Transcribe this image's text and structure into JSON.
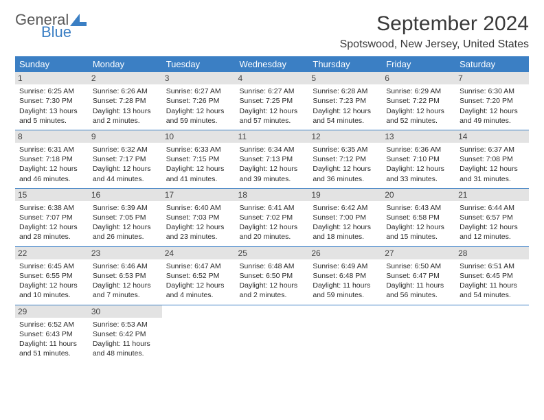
{
  "brand": {
    "line1": "General",
    "line2": "Blue",
    "logo_color": "#3b7fc4",
    "text_color": "#5a5a5a"
  },
  "title": "September 2024",
  "location": "Spotswood, New Jersey, United States",
  "colors": {
    "header_bg": "#3b7fc4",
    "header_fg": "#ffffff",
    "daynum_bg": "#e3e3e3",
    "border": "#3b7fc4"
  },
  "weekdays": [
    "Sunday",
    "Monday",
    "Tuesday",
    "Wednesday",
    "Thursday",
    "Friday",
    "Saturday"
  ],
  "weeks": [
    [
      {
        "n": "1",
        "sr": "6:25 AM",
        "ss": "7:30 PM",
        "dh": "13",
        "dm": "5"
      },
      {
        "n": "2",
        "sr": "6:26 AM",
        "ss": "7:28 PM",
        "dh": "13",
        "dm": "2"
      },
      {
        "n": "3",
        "sr": "6:27 AM",
        "ss": "7:26 PM",
        "dh": "12",
        "dm": "59"
      },
      {
        "n": "4",
        "sr": "6:27 AM",
        "ss": "7:25 PM",
        "dh": "12",
        "dm": "57"
      },
      {
        "n": "5",
        "sr": "6:28 AM",
        "ss": "7:23 PM",
        "dh": "12",
        "dm": "54"
      },
      {
        "n": "6",
        "sr": "6:29 AM",
        "ss": "7:22 PM",
        "dh": "12",
        "dm": "52"
      },
      {
        "n": "7",
        "sr": "6:30 AM",
        "ss": "7:20 PM",
        "dh": "12",
        "dm": "49"
      }
    ],
    [
      {
        "n": "8",
        "sr": "6:31 AM",
        "ss": "7:18 PM",
        "dh": "12",
        "dm": "46"
      },
      {
        "n": "9",
        "sr": "6:32 AM",
        "ss": "7:17 PM",
        "dh": "12",
        "dm": "44"
      },
      {
        "n": "10",
        "sr": "6:33 AM",
        "ss": "7:15 PM",
        "dh": "12",
        "dm": "41"
      },
      {
        "n": "11",
        "sr": "6:34 AM",
        "ss": "7:13 PM",
        "dh": "12",
        "dm": "39"
      },
      {
        "n": "12",
        "sr": "6:35 AM",
        "ss": "7:12 PM",
        "dh": "12",
        "dm": "36"
      },
      {
        "n": "13",
        "sr": "6:36 AM",
        "ss": "7:10 PM",
        "dh": "12",
        "dm": "33"
      },
      {
        "n": "14",
        "sr": "6:37 AM",
        "ss": "7:08 PM",
        "dh": "12",
        "dm": "31"
      }
    ],
    [
      {
        "n": "15",
        "sr": "6:38 AM",
        "ss": "7:07 PM",
        "dh": "12",
        "dm": "28"
      },
      {
        "n": "16",
        "sr": "6:39 AM",
        "ss": "7:05 PM",
        "dh": "12",
        "dm": "26"
      },
      {
        "n": "17",
        "sr": "6:40 AM",
        "ss": "7:03 PM",
        "dh": "12",
        "dm": "23"
      },
      {
        "n": "18",
        "sr": "6:41 AM",
        "ss": "7:02 PM",
        "dh": "12",
        "dm": "20"
      },
      {
        "n": "19",
        "sr": "6:42 AM",
        "ss": "7:00 PM",
        "dh": "12",
        "dm": "18"
      },
      {
        "n": "20",
        "sr": "6:43 AM",
        "ss": "6:58 PM",
        "dh": "12",
        "dm": "15"
      },
      {
        "n": "21",
        "sr": "6:44 AM",
        "ss": "6:57 PM",
        "dh": "12",
        "dm": "12"
      }
    ],
    [
      {
        "n": "22",
        "sr": "6:45 AM",
        "ss": "6:55 PM",
        "dh": "12",
        "dm": "10"
      },
      {
        "n": "23",
        "sr": "6:46 AM",
        "ss": "6:53 PM",
        "dh": "12",
        "dm": "7"
      },
      {
        "n": "24",
        "sr": "6:47 AM",
        "ss": "6:52 PM",
        "dh": "12",
        "dm": "4"
      },
      {
        "n": "25",
        "sr": "6:48 AM",
        "ss": "6:50 PM",
        "dh": "12",
        "dm": "2"
      },
      {
        "n": "26",
        "sr": "6:49 AM",
        "ss": "6:48 PM",
        "dh": "11",
        "dm": "59"
      },
      {
        "n": "27",
        "sr": "6:50 AM",
        "ss": "6:47 PM",
        "dh": "11",
        "dm": "56"
      },
      {
        "n": "28",
        "sr": "6:51 AM",
        "ss": "6:45 PM",
        "dh": "11",
        "dm": "54"
      }
    ],
    [
      {
        "n": "29",
        "sr": "6:52 AM",
        "ss": "6:43 PM",
        "dh": "11",
        "dm": "51"
      },
      {
        "n": "30",
        "sr": "6:53 AM",
        "ss": "6:42 PM",
        "dh": "11",
        "dm": "48"
      },
      null,
      null,
      null,
      null,
      null
    ]
  ]
}
